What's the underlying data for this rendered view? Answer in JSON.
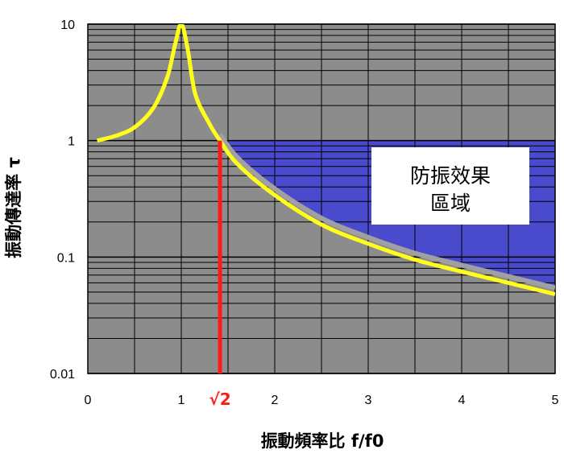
{
  "chart_data": {
    "type": "line",
    "xlabel": "振動頻率比 f/f0",
    "ylabel": "振動傳達率 τ",
    "xlim": [
      0,
      5
    ],
    "ylim": [
      0.01,
      10
    ],
    "yscale": "log",
    "x_ticks": [
      "0",
      "1",
      "2",
      "3",
      "4",
      "5"
    ],
    "y_ticks": [
      "0.01",
      "0.1",
      "1",
      "10"
    ],
    "grid": true,
    "series": [
      {
        "x": [
          0.1,
          0.3,
          0.5,
          0.7,
          0.85,
          0.93,
          1.0,
          1.07,
          1.15,
          1.3,
          1.414,
          1.6,
          2.0,
          2.5,
          3.0,
          3.5,
          4.0,
          4.5,
          5.0
        ],
        "y": [
          1.0,
          1.1,
          1.3,
          1.9,
          3.5,
          6.5,
          10.0,
          6.0,
          2.5,
          1.4,
          1.0,
          0.63,
          0.34,
          0.19,
          0.13,
          0.095,
          0.075,
          0.06,
          0.048
        ]
      }
    ],
    "annotations": {
      "sqrt2_label": "√2",
      "sqrt2_x": 1.414,
      "region_line1": "防振效果",
      "region_line2": "區域"
    },
    "colors": {
      "plot_bg": "#8c8c8c",
      "region": "#4a4acc",
      "curve": "#ffff1a",
      "marker_line": "#ff1a1a",
      "grid": "#000000"
    }
  }
}
